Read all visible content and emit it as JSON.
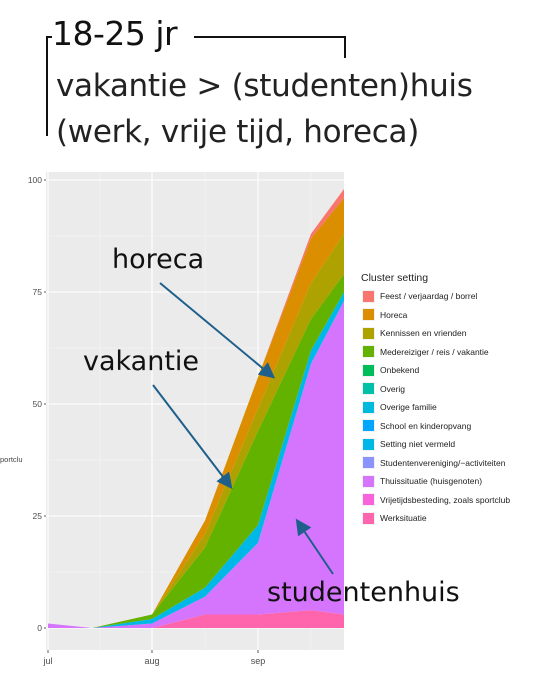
{
  "header": {
    "title": "18-25 jr",
    "line2": "vakantie > (studenten)huis",
    "line3": "(werk, vrije tijd, horeca)"
  },
  "annotations": {
    "horeca": "horeca",
    "vakantie": "vakantie",
    "studentenhuis": "studentenhuis"
  },
  "cut_off_label": "portclu",
  "chart_data": {
    "type": "area",
    "xlabel": "",
    "ylabel": "",
    "ylim": [
      0,
      100
    ],
    "x_ticks": [
      "jul",
      "aug",
      "sep"
    ],
    "y_ticks": [
      0,
      25,
      50,
      75,
      100
    ],
    "grid": true,
    "legend_position": "right",
    "legend_title": "Cluster setting",
    "categories": [
      {
        "name": "Feest / verjaardag / borrel",
        "color": "#F8766D"
      },
      {
        "name": "Horeca",
        "color": "#DB8E00"
      },
      {
        "name": "Kennissen en vrienden",
        "color": "#AEA200"
      },
      {
        "name": "Medereiziger / reis / vakantie",
        "color": "#64B200"
      },
      {
        "name": "Onbekend",
        "color": "#00BD5C"
      },
      {
        "name": "Overig",
        "color": "#00C1A7"
      },
      {
        "name": "Overige familie",
        "color": "#00BADE"
      },
      {
        "name": "School en kinderopvang",
        "color": "#00A6FF"
      },
      {
        "name": "Setting niet vermeld",
        "color": "#00B8E7"
      },
      {
        "name": "Studentenvereniging/−activiteiten",
        "color": "#8B93FF"
      },
      {
        "name": "Thuissituatie (huisgenoten)",
        "color": "#D575FE"
      },
      {
        "name": "Vrijetijdsbesteding, zoals sportclub",
        "color": "#F962DD"
      },
      {
        "name": "Werksituatie",
        "color": "#FF65AC"
      }
    ],
    "series_order_stack": [
      "Werksituatie",
      "Thuissituatie (huisgenoten)",
      "Setting niet vermeld",
      "Medereiziger / reis / vakantie",
      "Kennissen en vrienden",
      "Horeca",
      "Feest / verjaardag / borrel"
    ],
    "x": [
      "jul 1",
      "jul 15",
      "aug 1",
      "aug 15",
      "sep 1",
      "sep 15",
      "sep 25"
    ],
    "series": [
      {
        "name": "Werksituatie",
        "values": [
          0,
          0,
          0,
          3,
          3,
          4,
          3
        ]
      },
      {
        "name": "Thuissituatie (huisgenoten)",
        "values": [
          1,
          0,
          1,
          4,
          16,
          55,
          70
        ]
      },
      {
        "name": "Setting niet vermeld",
        "values": [
          0,
          0,
          1,
          2,
          4,
          3,
          2
        ]
      },
      {
        "name": "Medereiziger / reis / vakantie",
        "values": [
          0,
          0,
          1,
          9,
          21,
          7,
          4
        ]
      },
      {
        "name": "Kennissen en vrienden",
        "values": [
          0,
          0,
          0,
          3,
          5,
          8,
          9
        ]
      },
      {
        "name": "Horeca",
        "values": [
          0,
          0,
          0,
          3,
          7,
          10,
          8
        ]
      },
      {
        "name": "Feest / verjaardag / borrel",
        "values": [
          0,
          0,
          0,
          0,
          0,
          1,
          2
        ]
      }
    ]
  }
}
